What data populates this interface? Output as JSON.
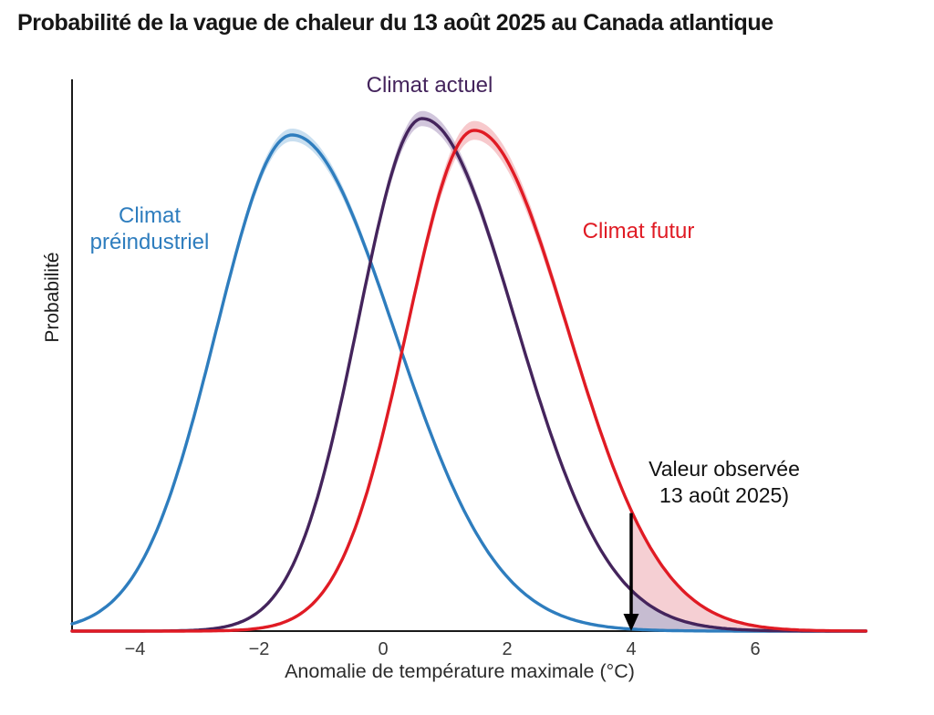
{
  "chart_data": {
    "type": "line",
    "title": "Probabilité de la vague de chaleur du 13 août 2025 au Canada atlantique",
    "xlabel": "Anomalie de température maximale (°C)",
    "ylabel": "Probabilité",
    "x_ticks": [
      -4,
      -2,
      0,
      2,
      4,
      6
    ],
    "xlim": [
      -5.015,
      7.8
    ],
    "y_ticks": [],
    "grid": false,
    "legend_position": "inline-labels",
    "observed_value_x": 4,
    "annotation": {
      "line1": "Valeur observée",
      "line2": "13 août 2025)"
    },
    "series": [
      {
        "name": "Climat préindustriel",
        "color": "#2e7dbe",
        "band_color": "#9cc4e4",
        "mean": -1.47,
        "sigma_left": 1.22,
        "sigma_right": 1.65,
        "peak_rel": 0.968,
        "band_frac": 0.011,
        "exceed_fill": null
      },
      {
        "name": "Climat actuel",
        "color": "#44245c",
        "band_color": "#ab97bf",
        "mean": 0.63,
        "sigma_left": 1.03,
        "sigma_right": 1.5,
        "peak_rel": 1.0,
        "band_frac": 0.013,
        "exceed_fill": "#c6bcd1"
      },
      {
        "name": "Climat futur",
        "color": "#e01b24",
        "band_color": "#f09da3",
        "mean": 1.47,
        "sigma_left": 1.08,
        "sigma_right": 1.5,
        "peak_rel": 0.977,
        "band_frac": 0.017,
        "exceed_fill": "#f5cfd3"
      }
    ],
    "axis_color": "#1a1a1a",
    "arrow_color": "#000000"
  }
}
